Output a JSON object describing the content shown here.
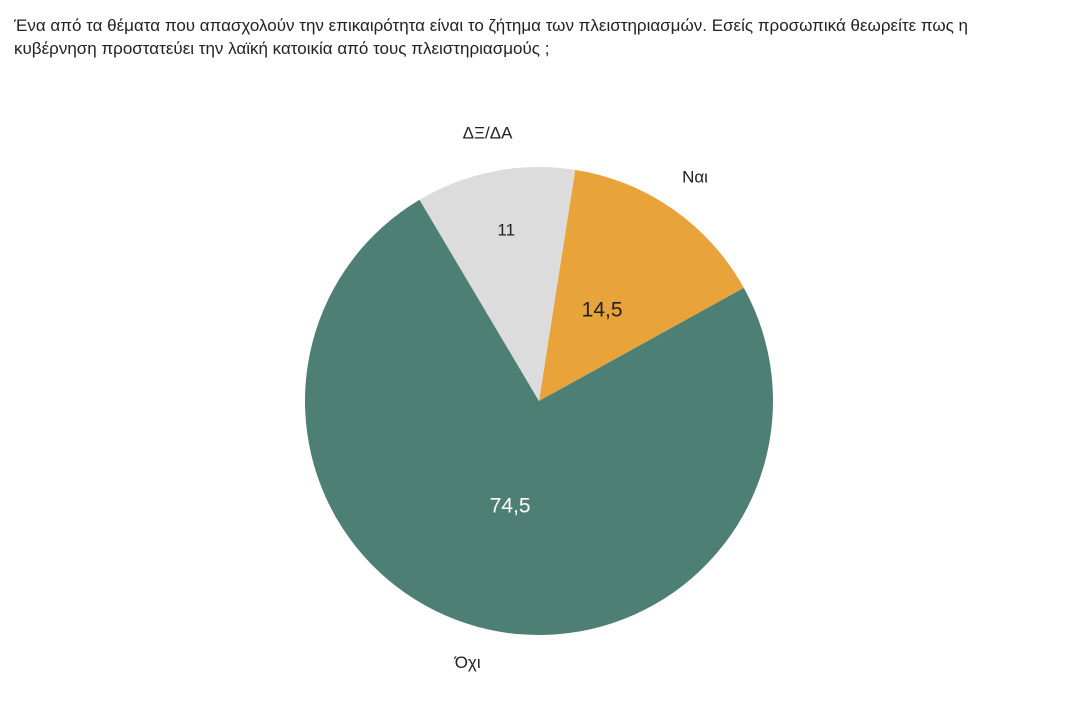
{
  "chart_data": {
    "type": "pie",
    "title": "Ένα από τα θέματα που απασχολούν την επικαιρότητα είναι το ζήτημα των πλειστηριασμών. Εσείς προσωπικά θεωρείτε πως η κυβέρνηση προστατεύει την λαϊκή κατοικία από τους πλειστηριασμούς ;",
    "categories": [
      "Ναι",
      "Όχι",
      "ΔΞ/ΔΑ"
    ],
    "values": [
      14.5,
      74.5,
      11
    ],
    "value_labels": [
      "14,5",
      "74,5",
      "11"
    ],
    "colors": [
      "#e8a33b",
      "#4d7f75",
      "#dcdcdc"
    ]
  }
}
